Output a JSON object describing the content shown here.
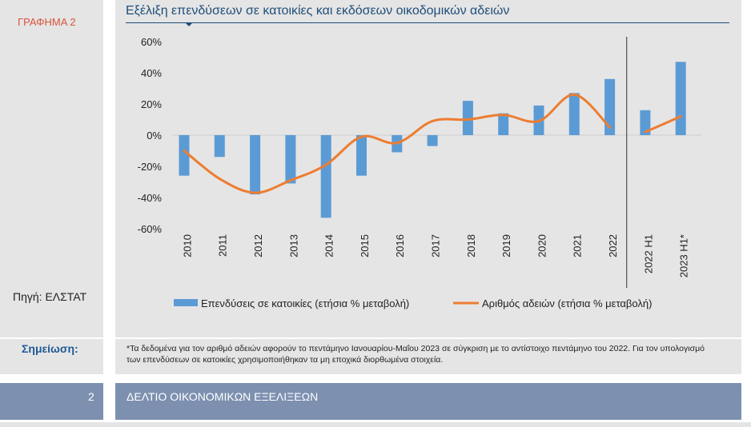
{
  "sidebar": {
    "graph_label": "ΓΡΑΦΗΜΑ 2",
    "source": "Πηγή: ΕΛΣΤΑΤ",
    "note_label": "Σημείωση:"
  },
  "note_text": "*Τα δεδομένα για τον αριθμό αδειών αφορούν το πεντάμηνο Ιανουαρίου-Μαΐου 2023 σε σύγκριση με το αντίστοιχο πεντάμηνο του 2022. Για τον υπολογισμό των επενδύσεων σε κατοικίες χρησιμοποιήθηκαν τα μη εποχικά διορθωμένα στοιχεία.",
  "footer": {
    "page_number": "2",
    "bulletin": "ΔΕΛΤΙΟ ΟΙΚΟΝΟΜΙΚΩΝ ΕΞΕΛΙΞΕΩΝ"
  },
  "colors": {
    "bar": "#5b9bd5",
    "line": "#ed7d31",
    "title": "#1f4e7a",
    "graph_label": "#d9533b"
  },
  "chart_data": {
    "type": "bar",
    "title": "Εξέλιξη επενδύσεων σε κατοικίες και εκδόσεων οικοδομικών αδειών",
    "categories": [
      "2010",
      "2011",
      "2012",
      "2013",
      "2014",
      "2015",
      "2016",
      "2017",
      "2018",
      "2019",
      "2020",
      "2021",
      "2022",
      "2022 H1",
      "2023 H1*"
    ],
    "y_tick_labels": [
      "60%",
      "40%",
      "20%",
      "0%",
      "-20%",
      "-40%",
      "-60%"
    ],
    "ylim": [
      -60,
      60
    ],
    "grid": false,
    "legend_position": "bottom",
    "series": [
      {
        "name": "Επενδύσεις σε κατοικίες (ετήσια % μεταβολή)",
        "type": "bar",
        "values": [
          -26,
          -14,
          -38,
          -31,
          -53,
          -26,
          -11,
          -7,
          22,
          14,
          19,
          27,
          36,
          16,
          47
        ]
      },
      {
        "name": "Αριθμός αδειών (ετήσια % μεταβολή)",
        "type": "line",
        "values": [
          -10,
          -28,
          -37,
          -29,
          -19,
          -1,
          -5,
          9,
          10,
          13,
          9,
          26,
          5,
          2,
          12
        ]
      }
    ],
    "separator_after_category": "2022"
  }
}
